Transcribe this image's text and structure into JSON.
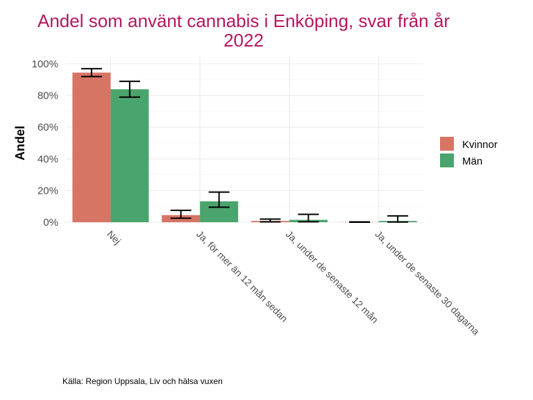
{
  "chart_data": {
    "type": "bar",
    "title_lines": [
      "Andel som använt cannabis i Enköping, svar från år",
      "2022"
    ],
    "ylabel": "Andel",
    "xlabel": "",
    "ylim": [
      0,
      100
    ],
    "yticks": [
      "0%",
      "20%",
      "40%",
      "60%",
      "80%",
      "100%"
    ],
    "categories": [
      "Nej",
      "Ja, för mer än 12 mån sedan",
      "Ja, under de senaste 12 mån",
      "Ja, under de senaste 30 dagarna"
    ],
    "series": [
      {
        "name": "Kvinnor",
        "color": "#d77565",
        "values": [
          94.5,
          4.5,
          0.8,
          0.1
        ],
        "ci_low": [
          92,
          2.5,
          0.2,
          0
        ],
        "ci_high": [
          97,
          7.5,
          2,
          0.2
        ]
      },
      {
        "name": "Män",
        "color": "#4aa46d",
        "values": [
          84,
          13.2,
          1.5,
          0.8
        ],
        "ci_low": [
          79,
          9.5,
          0.3,
          0.1
        ],
        "ci_high": [
          89,
          19,
          5,
          4
        ]
      }
    ],
    "grid": true,
    "legend": "right",
    "caption": "Källa: Region Uppsala, Liv och hälsa vuxen"
  }
}
